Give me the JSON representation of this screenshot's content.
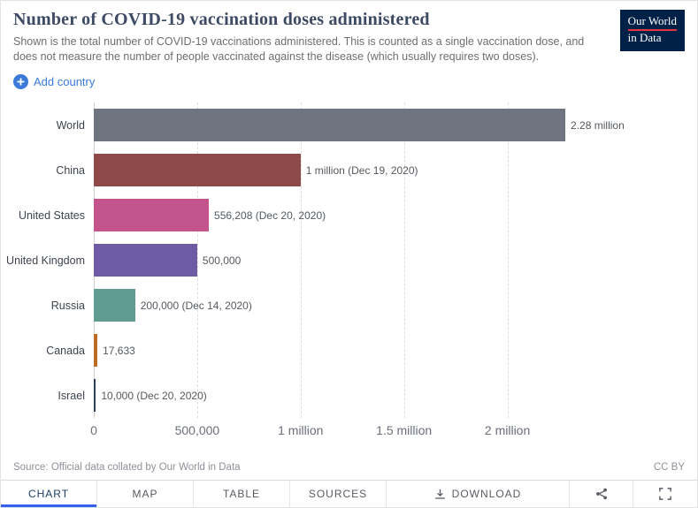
{
  "header": {
    "title": "Number of COVID-19 vaccination doses administered",
    "subtitle": "Shown is the total number of COVID-19 vaccinations administered. This is counted as a single vaccination dose, and does not measure the number of people vaccinated against the disease (which usually requires two doses).",
    "logo": {
      "line1": "Our World",
      "line2": "in Data"
    }
  },
  "controls": {
    "add_country_label": "Add country"
  },
  "chart_data": {
    "type": "bar",
    "orientation": "horizontal",
    "title": "Number of COVID-19 vaccination doses administered",
    "categories": [
      "World",
      "China",
      "United States",
      "United Kingdom",
      "Russia",
      "Canada",
      "Israel"
    ],
    "values": [
      2280000,
      1000000,
      556208,
      500000,
      200000,
      17633,
      10000
    ],
    "value_labels": [
      "2.28 million",
      "1 million (Dec 19, 2020)",
      "556,208 (Dec 20, 2020)",
      "500,000",
      "200,000 (Dec 14, 2020)",
      "17,633",
      "10,000 (Dec 20, 2020)"
    ],
    "bar_colors": [
      "#6e7581",
      "#8e4a49",
      "#c2548b",
      "#6f5aa5",
      "#5f9c92",
      "#bc6c25",
      "#2d3e5c"
    ],
    "x_ticks": [
      {
        "value": 0,
        "label": "0"
      },
      {
        "value": 500000,
        "label": "500,000"
      },
      {
        "value": 1000000,
        "label": "1 million"
      },
      {
        "value": 1500000,
        "label": "1.5 million"
      },
      {
        "value": 2000000,
        "label": "2 million"
      }
    ],
    "x_max": 2900000,
    "grid": true,
    "legend": false
  },
  "footer": {
    "source": "Source: Official data collated by Our World in Data",
    "license": "CC BY"
  },
  "tabbar": {
    "tabs": [
      {
        "label": "CHART",
        "active": true
      },
      {
        "label": "MAP",
        "active": false
      },
      {
        "label": "TABLE",
        "active": false
      },
      {
        "label": "SOURCES",
        "active": false
      },
      {
        "label": "DOWNLOAD",
        "active": false
      }
    ]
  },
  "colors": {
    "accent_blue": "#3b7ad9",
    "active_tab_underline": "#3360ec",
    "logo_bg": "#002147",
    "logo_accent": "#e0373f",
    "title_color": "#3d4a63"
  }
}
